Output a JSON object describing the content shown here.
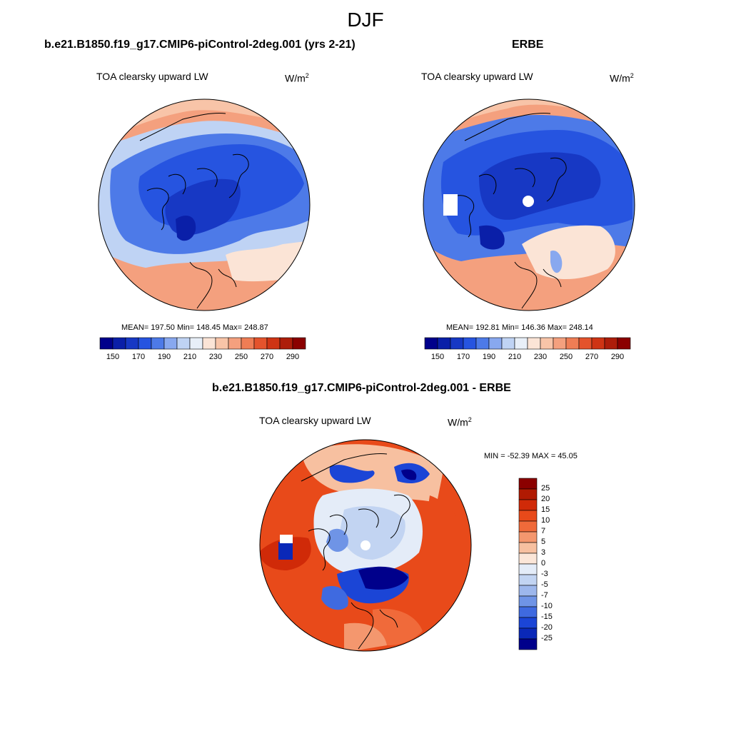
{
  "season": "DJF",
  "colors": {
    "dark_blue": "#00008b",
    "blue": "#1f4de0",
    "light_blue": "#a9c4ee",
    "pale": "#f4e9e1",
    "salmon": "#f2a07b",
    "red_orange": "#e5471f",
    "dark_red": "#8b0000"
  },
  "top_left": {
    "run_title": "b.e21.B1850.f19_g17.CMIP6-piControl-2deg.001 (yrs 2-21)",
    "panel_label": "TOA clearsky upward LW",
    "unit_base": "W/m",
    "unit_exp": "2",
    "stats": "MEAN= 197.50  Min= 148.45  Max= 248.87"
  },
  "top_right": {
    "run_title": "ERBE",
    "panel_label": "TOA clearsky upward LW",
    "unit_base": "W/m",
    "unit_exp": "2",
    "stats": "MEAN= 192.81  Min= 146.36  Max= 248.14"
  },
  "colorbar_top": {
    "ticks": [
      "150",
      "170",
      "190",
      "210",
      "230",
      "250",
      "270",
      "290"
    ],
    "colors": [
      "#00008b",
      "#0a1fa8",
      "#1738c4",
      "#2654e0",
      "#4d7ae8",
      "#88a8ef",
      "#bfd3f4",
      "#e8eff8",
      "#fbe4d6",
      "#f8c4a8",
      "#f4a07e",
      "#ef7d55",
      "#e4532c",
      "#cf3414",
      "#ad1d0a",
      "#8b0000"
    ]
  },
  "bottom": {
    "run_title": "b.e21.B1850.f19_g17.CMIP6-piControl-2deg.001 - ERBE",
    "panel_label": "TOA clearsky upward LW",
    "unit_base": "W/m",
    "unit_exp": "2",
    "stats": "MIN = -52.39 MAX =  45.05"
  },
  "colorbar_diff": {
    "ticks": [
      "25",
      "20",
      "15",
      "10",
      "7",
      "5",
      "3",
      "0",
      "-3",
      "-5",
      "-7",
      "-10",
      "-15",
      "-20",
      "-25"
    ],
    "colors": [
      "#8b0000",
      "#b01a02",
      "#d02a08",
      "#e84a1a",
      "#f06a3a",
      "#f4976e",
      "#f7c0a0",
      "#fbe6d8",
      "#e4ecf8",
      "#c2d4f2",
      "#9db7ec",
      "#6f94e6",
      "#3f6ae0",
      "#1b45d6",
      "#0a28b8",
      "#00008b"
    ]
  }
}
